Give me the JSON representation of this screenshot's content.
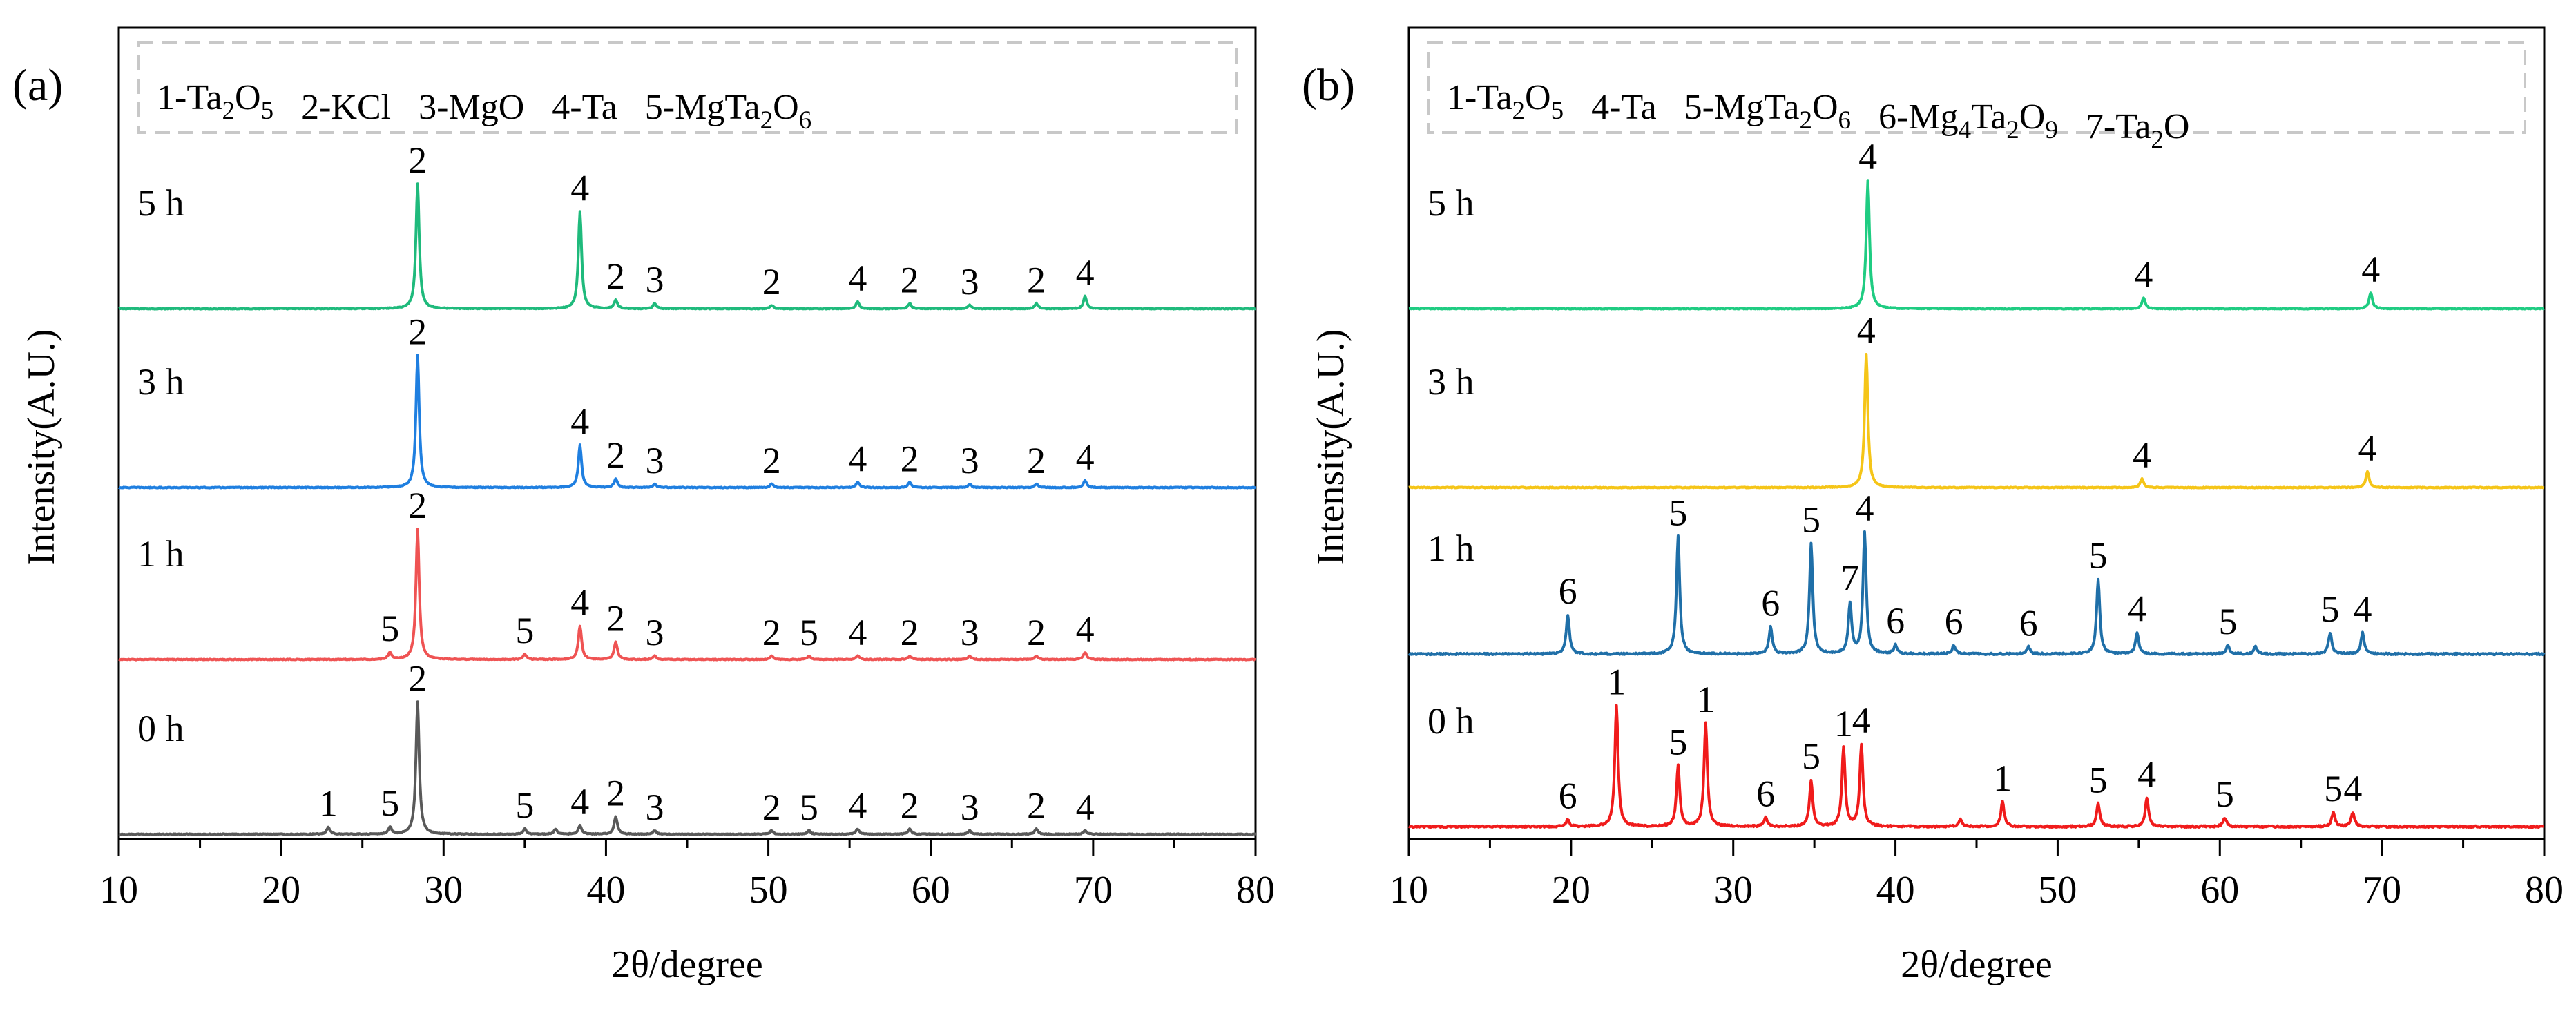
{
  "chart_data": [
    {
      "type": "line",
      "panel_label": "(a)",
      "xlabel": "2θ/degree",
      "ylabel": "Intensity(A.U.)",
      "xlim": [
        10,
        80
      ],
      "xticks": [
        "10",
        "20",
        "30",
        "40",
        "50",
        "60",
        "70",
        "80"
      ],
      "legend": [
        {
          "num": "1",
          "sep": "-",
          "parts": [
            {
              "t": "Ta"
            },
            {
              "s": "2"
            },
            {
              "t": "O"
            },
            {
              "s": "5"
            }
          ]
        },
        {
          "num": "2",
          "sep": "-",
          "parts": [
            {
              "t": "KCl"
            }
          ]
        },
        {
          "num": "3",
          "sep": "-",
          "parts": [
            {
              "t": "MgO"
            }
          ]
        },
        {
          "num": "4",
          "sep": "-",
          "parts": [
            {
              "t": "Ta"
            }
          ]
        },
        {
          "num": "5",
          "sep": "-",
          "parts": [
            {
              "t": "MgTa"
            },
            {
              "s": "2"
            },
            {
              "t": "O"
            },
            {
              "s": "6"
            }
          ]
        }
      ],
      "series": [
        {
          "name": "5 h",
          "color": "#1fba7c",
          "peaks": [
            [
              28.4,
              71
            ],
            [
              38.4,
              55
            ],
            [
              40.6,
              5
            ],
            [
              43.0,
              3
            ],
            [
              50.2,
              2
            ],
            [
              55.5,
              4
            ],
            [
              58.7,
              3
            ],
            [
              62.4,
              2
            ],
            [
              66.5,
              3
            ],
            [
              69.5,
              7
            ]
          ],
          "annotations": [
            {
              "label": "2",
              "x": 28.4
            },
            {
              "label": "4",
              "x": 38.4
            },
            {
              "label": "2",
              "x": 40.6
            },
            {
              "label": "3",
              "x": 43.0
            },
            {
              "label": "2",
              "x": 50.2
            },
            {
              "label": "4",
              "x": 55.5
            },
            {
              "label": "2",
              "x": 58.7
            },
            {
              "label": "3",
              "x": 62.4
            },
            {
              "label": "2",
              "x": 66.5
            },
            {
              "label": "4",
              "x": 69.5
            }
          ]
        },
        {
          "name": "3 h",
          "color": "#1f7fe0",
          "peaks": [
            [
              28.4,
              75
            ],
            [
              38.4,
              24
            ],
            [
              40.6,
              5
            ],
            [
              43.0,
              2
            ],
            [
              50.2,
              2
            ],
            [
              55.5,
              3
            ],
            [
              58.7,
              3
            ],
            [
              62.4,
              2
            ],
            [
              66.5,
              2
            ],
            [
              69.5,
              4
            ]
          ],
          "annotations": [
            {
              "label": "2",
              "x": 28.4
            },
            {
              "label": "4",
              "x": 38.4
            },
            {
              "label": "2",
              "x": 40.6
            },
            {
              "label": "3",
              "x": 43.0
            },
            {
              "label": "2",
              "x": 50.2
            },
            {
              "label": "4",
              "x": 55.5
            },
            {
              "label": "2",
              "x": 58.7
            },
            {
              "label": "3",
              "x": 62.4
            },
            {
              "label": "2",
              "x": 66.5
            },
            {
              "label": "4",
              "x": 69.5
            }
          ]
        },
        {
          "name": "1 h",
          "color": "#ef5353",
          "peaks": [
            [
              26.7,
              4
            ],
            [
              28.4,
              74
            ],
            [
              35.0,
              3
            ],
            [
              38.4,
              19
            ],
            [
              40.6,
              10
            ],
            [
              43.0,
              2
            ],
            [
              50.2,
              2
            ],
            [
              52.5,
              2
            ],
            [
              55.5,
              2
            ],
            [
              58.7,
              2
            ],
            [
              62.4,
              2
            ],
            [
              66.5,
              2
            ],
            [
              69.5,
              4
            ]
          ],
          "annotations": [
            {
              "label": "5",
              "x": 26.7
            },
            {
              "label": "2",
              "x": 28.4
            },
            {
              "label": "5",
              "x": 35.0
            },
            {
              "label": "4",
              "x": 38.4
            },
            {
              "label": "2",
              "x": 40.6
            },
            {
              "label": "3",
              "x": 43.0
            },
            {
              "label": "2",
              "x": 50.2
            },
            {
              "label": "5",
              "x": 52.5
            },
            {
              "label": "4",
              "x": 55.5
            },
            {
              "label": "2",
              "x": 58.7
            },
            {
              "label": "3",
              "x": 62.4
            },
            {
              "label": "2",
              "x": 66.5
            },
            {
              "label": "4",
              "x": 69.5
            }
          ]
        },
        {
          "name": "0 h",
          "color": "#595959",
          "peaks": [
            [
              22.9,
              4
            ],
            [
              26.7,
              4
            ],
            [
              28.4,
              75
            ],
            [
              35.0,
              3
            ],
            [
              36.9,
              3
            ],
            [
              38.4,
              5
            ],
            [
              40.6,
              10
            ],
            [
              43.0,
              2
            ],
            [
              50.2,
              2
            ],
            [
              52.5,
              2
            ],
            [
              55.5,
              3
            ],
            [
              58.7,
              3
            ],
            [
              62.4,
              2
            ],
            [
              66.5,
              3
            ],
            [
              69.5,
              2
            ]
          ],
          "annotations": [
            {
              "label": "1",
              "x": 22.9
            },
            {
              "label": "5",
              "x": 26.7
            },
            {
              "label": "2",
              "x": 28.4
            },
            {
              "label": "5",
              "x": 35.0
            },
            {
              "label": "4",
              "x": 38.4
            },
            {
              "label": "2",
              "x": 40.6
            },
            {
              "label": "3",
              "x": 43.0
            },
            {
              "label": "2",
              "x": 50.2
            },
            {
              "label": "5",
              "x": 52.5
            },
            {
              "label": "4",
              "x": 55.5
            },
            {
              "label": "2",
              "x": 58.7
            },
            {
              "label": "3",
              "x": 62.4
            },
            {
              "label": "2",
              "x": 66.5
            },
            {
              "label": "4",
              "x": 69.5
            }
          ]
        }
      ]
    },
    {
      "type": "line",
      "panel_label": "(b)",
      "xlabel": "2θ/degree",
      "ylabel": "Intensity(A.U.)",
      "xlim": [
        10,
        80
      ],
      "xticks": [
        "10",
        "20",
        "30",
        "40",
        "50",
        "60",
        "70",
        "80"
      ],
      "legend": [
        {
          "num": "1",
          "sep": "-",
          "parts": [
            {
              "t": "Ta"
            },
            {
              "s": "2"
            },
            {
              "t": "O"
            },
            {
              "s": "5"
            }
          ]
        },
        {
          "num": "4",
          "sep": "-",
          "parts": [
            {
              "t": "Ta"
            }
          ]
        },
        {
          "num": "5",
          "sep": "-",
          "parts": [
            {
              "t": "MgTa"
            },
            {
              "s": "2"
            },
            {
              "t": "O"
            },
            {
              "s": "6"
            }
          ]
        },
        {
          "num": "6",
          "sep": "-",
          "parts": [
            {
              "t": "Mg"
            },
            {
              "s": "4"
            },
            {
              "t": "Ta"
            },
            {
              "s": "2"
            },
            {
              "t": "O"
            },
            {
              "s": "9"
            }
          ]
        },
        {
          "num": "7",
          "sep": "-",
          "parts": [
            {
              "t": "Ta"
            },
            {
              "s": "2"
            },
            {
              "t": "O"
            }
          ]
        }
      ],
      "series": [
        {
          "name": "5 h",
          "color": "#1fcc82",
          "peaks": [
            [
              38.3,
              72
            ],
            [
              55.3,
              6
            ],
            [
              69.3,
              9
            ]
          ],
          "annotations": [
            {
              "label": "4",
              "x": 38.3
            },
            {
              "label": "4",
              "x": 55.3
            },
            {
              "label": "4",
              "x": 69.3
            }
          ]
        },
        {
          "name": "3 h",
          "color": "#f5c518",
          "peaks": [
            [
              38.2,
              75
            ],
            [
              55.2,
              5
            ],
            [
              69.1,
              9
            ]
          ],
          "annotations": [
            {
              "label": "4",
              "x": 38.2
            },
            {
              "label": "4",
              "x": 55.2
            },
            {
              "label": "4",
              "x": 69.1
            }
          ]
        },
        {
          "name": "1 h",
          "color": "#1f6fa8",
          "peaks": [
            [
              19.8,
              22
            ],
            [
              26.6,
              66
            ],
            [
              32.3,
              15
            ],
            [
              34.8,
              62
            ],
            [
              37.2,
              28
            ],
            [
              38.1,
              68
            ],
            [
              40.0,
              5
            ],
            [
              43.6,
              5
            ],
            [
              48.2,
              4
            ],
            [
              52.5,
              42
            ],
            [
              54.9,
              12
            ],
            [
              60.5,
              5
            ],
            [
              62.2,
              4
            ],
            [
              66.8,
              12
            ],
            [
              68.8,
              12
            ]
          ],
          "annotations": [
            {
              "label": "6",
              "x": 19.8
            },
            {
              "label": "5",
              "x": 26.6
            },
            {
              "label": "6",
              "x": 32.3
            },
            {
              "label": "5",
              "x": 34.8
            },
            {
              "label": "7",
              "x": 37.2
            },
            {
              "label": "4",
              "x": 38.1
            },
            {
              "label": "6",
              "x": 40.0
            },
            {
              "label": "6",
              "x": 43.6
            },
            {
              "label": "6",
              "x": 48.2
            },
            {
              "label": "5",
              "x": 52.5
            },
            {
              "label": "4",
              "x": 54.9
            },
            {
              "label": "5",
              "x": 60.5
            },
            {
              "label": "5",
              "x": 66.8
            },
            {
              "label": "4",
              "x": 68.8
            }
          ]
        },
        {
          "name": "0 h",
          "color": "#f01b1b",
          "peaks": [
            [
              19.8,
              4
            ],
            [
              22.8,
              68
            ],
            [
              26.6,
              34
            ],
            [
              28.3,
              58
            ],
            [
              32.0,
              5
            ],
            [
              34.8,
              26
            ],
            [
              36.8,
              44
            ],
            [
              37.9,
              46
            ],
            [
              44.0,
              4
            ],
            [
              46.6,
              14
            ],
            [
              52.5,
              13
            ],
            [
              55.5,
              16
            ],
            [
              60.3,
              5
            ],
            [
              67.0,
              8
            ],
            [
              68.2,
              8
            ]
          ],
          "annotations": [
            {
              "label": "6",
              "x": 19.8
            },
            {
              "label": "1",
              "x": 22.8
            },
            {
              "label": "5",
              "x": 26.6
            },
            {
              "label": "1",
              "x": 28.3
            },
            {
              "label": "6",
              "x": 32.0
            },
            {
              "label": "5",
              "x": 34.8
            },
            {
              "label": "1",
              "x": 36.8
            },
            {
              "label": "4",
              "x": 37.9
            },
            {
              "label": "1",
              "x": 46.6
            },
            {
              "label": "5",
              "x": 52.5
            },
            {
              "label": "4",
              "x": 55.5
            },
            {
              "label": "5",
              "x": 60.3
            },
            {
              "label": "5",
              "x": 67.0
            },
            {
              "label": "4",
              "x": 68.2
            }
          ]
        }
      ]
    }
  ]
}
